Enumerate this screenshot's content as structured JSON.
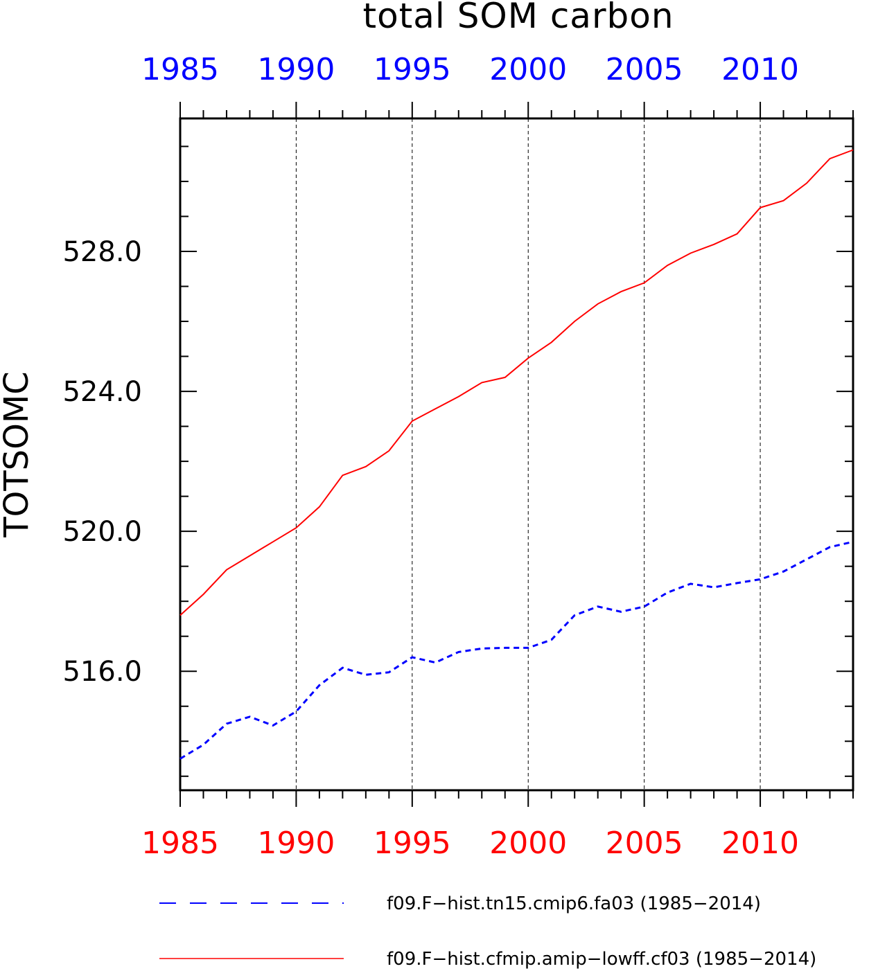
{
  "chart_data": {
    "type": "line",
    "title": "total SOM carbon",
    "ylabel": "TOTSOMC",
    "xlabel": "",
    "xlim": [
      1985,
      2014
    ],
    "ylim": [
      512.6,
      531.8
    ],
    "x_ticks": [
      1985,
      1990,
      1995,
      2000,
      2005,
      2010
    ],
    "y_ticks": [
      516.0,
      520.0,
      524.0,
      528.0
    ],
    "y_tick_labels": [
      "516.0",
      "520.0",
      "524.0",
      "528.0"
    ],
    "top_axis_color": "#0000ff",
    "bottom_axis_color": "#ff0000",
    "grid": "vertical dashed at major x ticks",
    "legend_position": "bottom",
    "x": [
      1985,
      1986,
      1987,
      1988,
      1989,
      1990,
      1991,
      1992,
      1993,
      1994,
      1995,
      1996,
      1997,
      1998,
      1999,
      2000,
      2001,
      2002,
      2003,
      2004,
      2005,
      2006,
      2007,
      2008,
      2009,
      2010,
      2011,
      2012,
      2013,
      2014
    ],
    "series": [
      {
        "name": "f09.F−hist.tn15.cmip6.fa03 (1985−2014)",
        "color": "#0000ff",
        "style": "dashed",
        "values": [
          513.5,
          513.9,
          514.5,
          514.7,
          514.45,
          514.85,
          515.6,
          516.1,
          515.9,
          515.97,
          516.4,
          516.25,
          516.55,
          516.65,
          516.67,
          516.67,
          516.9,
          517.6,
          517.85,
          517.7,
          517.85,
          518.25,
          518.5,
          518.4,
          518.52,
          518.63,
          518.85,
          519.2,
          519.55,
          519.7
        ]
      },
      {
        "name": "f09.F−hist.cfmip.amip−lowff.cf03 (1985−2014)",
        "color": "#ff0000",
        "style": "solid",
        "values": [
          517.6,
          518.2,
          518.9,
          519.3,
          519.7,
          520.1,
          520.7,
          521.6,
          521.85,
          522.3,
          523.15,
          523.5,
          523.85,
          524.25,
          524.4,
          524.95,
          525.4,
          526.0,
          526.5,
          526.85,
          527.1,
          527.6,
          527.95,
          528.2,
          528.5,
          529.25,
          529.45,
          529.95,
          530.65,
          530.9
        ]
      }
    ]
  }
}
